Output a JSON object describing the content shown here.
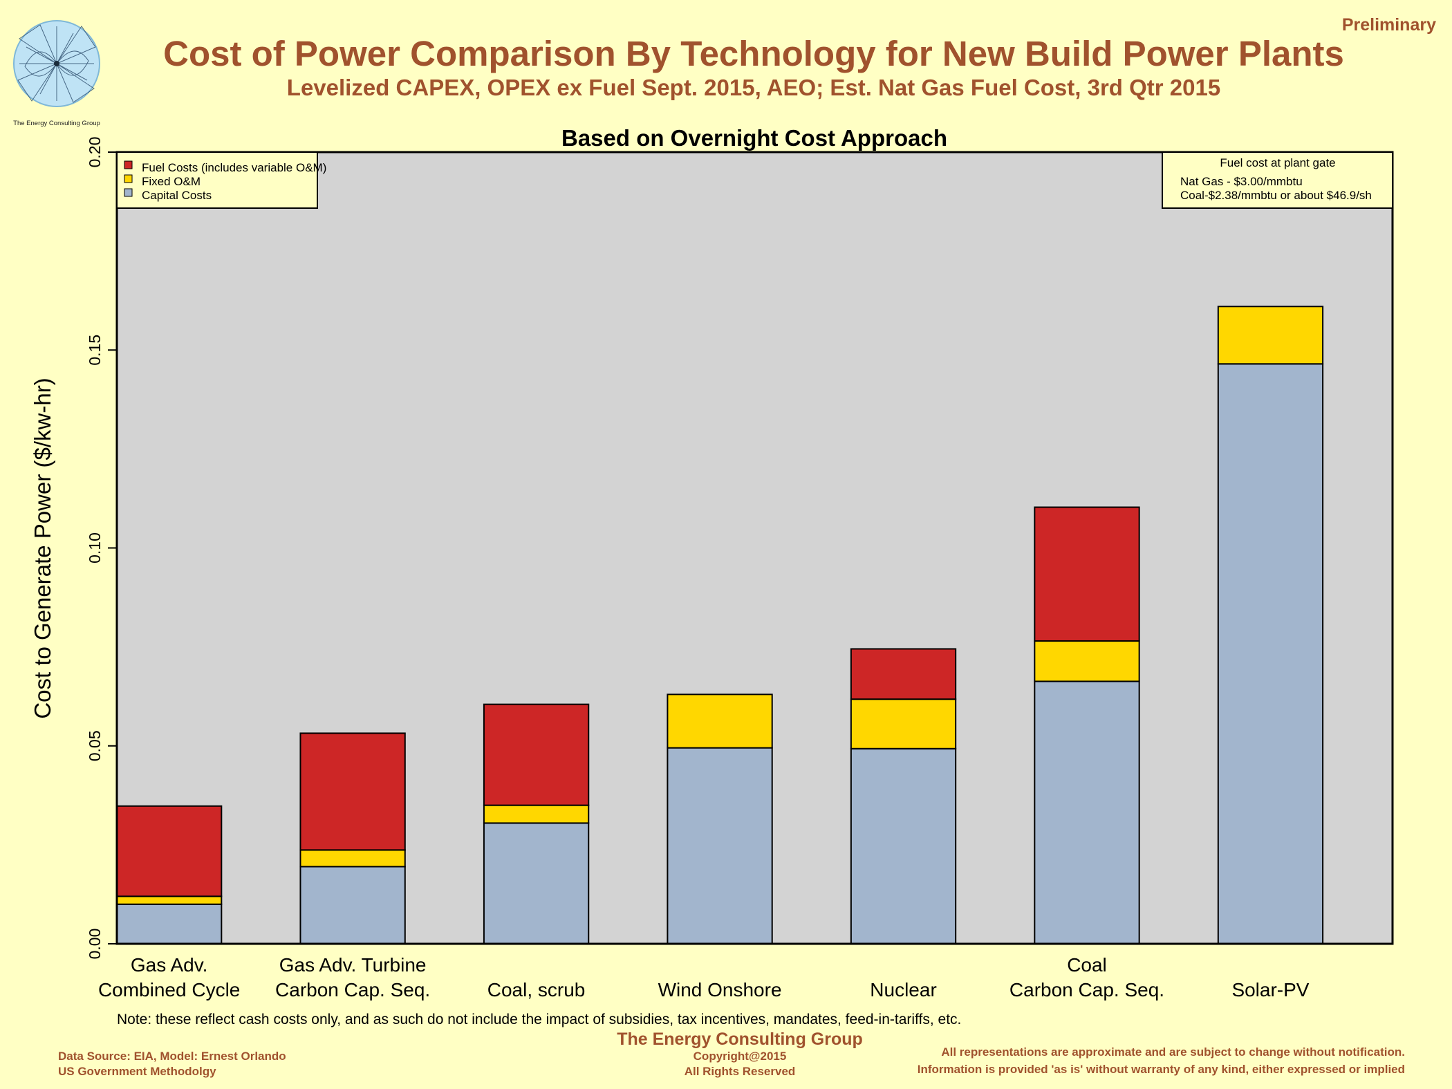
{
  "header": {
    "title": "Cost of Power Comparison By Technology for New Build Power Plants",
    "subtitle": "Levelized CAPEX, OPEX ex Fuel Sept. 2015, AEO; Est. Nat Gas Fuel Cost, 3rd Qtr 2015",
    "status": "Preliminary",
    "logo_caption": "The Energy Consulting Group"
  },
  "colors": {
    "background": "#ffffc4",
    "plot_bg": "#d3d3d3",
    "fuel": "#cd2626",
    "fixed": "#ffd700",
    "capital": "#a2b5cd",
    "accent": "#a0522d"
  },
  "chart_data": {
    "type": "bar",
    "stacked": true,
    "title": "Based on Overnight Cost Approach",
    "ylabel": "Cost to Generate Power ($/kw-hr)",
    "xlabel": "",
    "ylim": [
      0,
      0.2
    ],
    "yticks": [
      "0.00",
      "0.05",
      "0.10",
      "0.15",
      "0.20"
    ],
    "ytick_values": [
      0,
      0.05,
      0.1,
      0.15,
      0.2
    ],
    "grid": false,
    "legend_position": "top-left",
    "categories": [
      [
        "Gas Adv.",
        "Combined Cycle"
      ],
      [
        "Gas Adv. Turbine",
        "Carbon Cap. Seq."
      ],
      [
        "",
        "Coal, scrub"
      ],
      [
        "",
        "Wind Onshore"
      ],
      [
        "",
        "Nuclear"
      ],
      [
        "Coal",
        "Carbon Cap. Seq."
      ],
      [
        "",
        "Solar-PV"
      ]
    ],
    "series": [
      {
        "name": "Capital Costs",
        "color": "#a2b5cd",
        "values": [
          0.01,
          0.0195,
          0.0305,
          0.0495,
          0.0493,
          0.0663,
          0.1465
        ]
      },
      {
        "name": "Fixed O&M",
        "color": "#ffd700",
        "values": [
          0.002,
          0.0042,
          0.0045,
          0.0135,
          0.0125,
          0.0102,
          0.0145
        ]
      },
      {
        "name": "Fuel Costs (includes variable O&M)",
        "color": "#cd2626",
        "values": [
          0.0228,
          0.0295,
          0.0255,
          0.0,
          0.0127,
          0.0338,
          0.0
        ]
      }
    ],
    "legend_entries": [
      "Fuel Costs (includes variable O&M)",
      "Fixed O&M",
      "Capital Costs"
    ],
    "fuel_box": {
      "title": "Fuel cost at plant gate",
      "lines": [
        "Nat Gas - $3.00/mmbtu",
        "Coal-$2.38/mmbtu or about $46.9/sh"
      ]
    }
  },
  "notes": {
    "note": "Note: these reflect cash costs only, and as such do not include the impact of subsidies, tax incentives, mandates, feed-in-tariffs, etc."
  },
  "footer": {
    "org": "The Energy Consulting Group",
    "copyright": "Copyright@2015",
    "rights": "All Rights Reserved",
    "source_line1": "Data Source: EIA, Model: Ernest Orlando",
    "source_line2": "US Government Methodolgy",
    "disclaimer_line1": "All representations are approximate and are subject to change without notification.",
    "disclaimer_line2": "Information is provided 'as is' without warranty of any kind, either expressed or implied"
  }
}
